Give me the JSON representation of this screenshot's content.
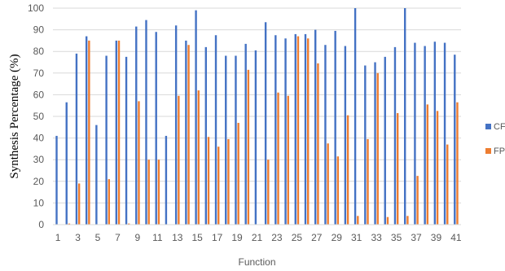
{
  "chart_data": {
    "type": "bar",
    "title": "",
    "xlabel": "Function",
    "ylabel": "Synthesis Percentage (%)",
    "ylim": [
      0,
      100
    ],
    "ytick_step": 10,
    "grid": true,
    "legend_position": "right",
    "x_tick_labels": [
      "1",
      "3",
      "5",
      "7",
      "9",
      "11",
      "13",
      "15",
      "17",
      "19",
      "21",
      "23",
      "25",
      "27",
      "29",
      "31",
      "33",
      "35",
      "37",
      "39",
      "41"
    ],
    "categories": [
      "1",
      "2",
      "3",
      "4",
      "5",
      "6",
      "7",
      "8",
      "9",
      "10",
      "11",
      "12",
      "13",
      "14",
      "15",
      "16",
      "17",
      "18",
      "19",
      "20",
      "21",
      "22",
      "23",
      "24",
      "25",
      "26",
      "27",
      "28",
      "29",
      "30",
      "31",
      "32",
      "33",
      "35",
      "34",
      "36",
      "37",
      "38",
      "39",
      "40",
      "41"
    ],
    "series": [
      {
        "name": "CF",
        "color": "#4472C4",
        "values": [
          41,
          56.5,
          79,
          87,
          46,
          78,
          85,
          77.5,
          91.5,
          94.5,
          89,
          41,
          92,
          85,
          99,
          82,
          87.5,
          78,
          78,
          83.5,
          80.5,
          93.5,
          87.5,
          86,
          88,
          88,
          90,
          83,
          89.5,
          82.5,
          100,
          73.5,
          75,
          77.5,
          82,
          100,
          84,
          82.5,
          84.5,
          84,
          78.5
        ]
      },
      {
        "name": "FP",
        "color": "#ED7D31",
        "values": [
          0,
          0.5,
          19,
          85,
          0,
          21,
          85,
          0.5,
          57,
          30,
          30,
          0,
          59.5,
          83,
          62,
          40.5,
          36,
          39.5,
          47,
          71.5,
          0,
          30,
          61,
          59.5,
          87,
          86,
          74.5,
          37.5,
          31.5,
          50.5,
          4,
          39.5,
          70,
          3.5,
          51.5,
          4,
          22.5,
          55.5,
          52.5,
          37,
          56.5
        ]
      }
    ]
  }
}
